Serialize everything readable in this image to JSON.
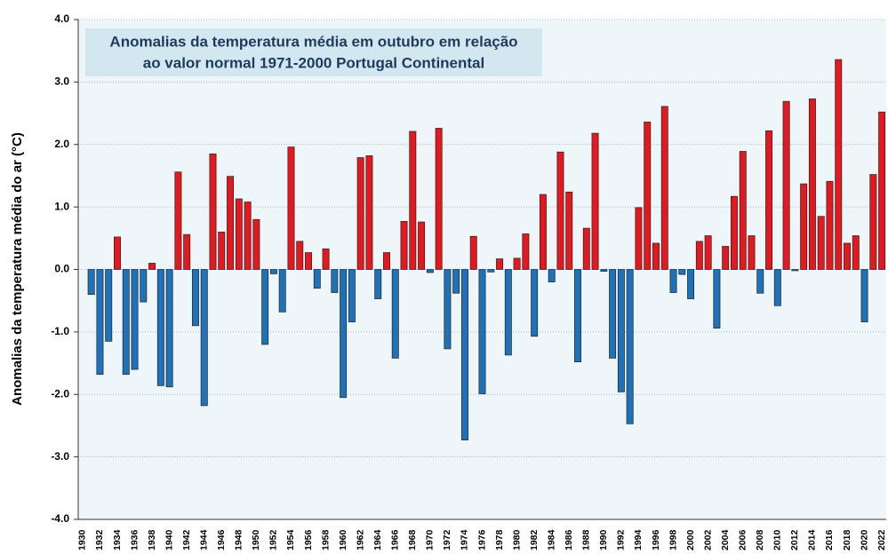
{
  "chart_data": {
    "type": "bar",
    "title": [
      "Anomalias da temperatura média em outubro em relação",
      "ao valor normal 1971-2000 Portugal Continental"
    ],
    "y_label": "Anomalias da temperatura média do ar (°C)",
    "categories": [
      "1930",
      null,
      "1932",
      null,
      "1934",
      null,
      "1936",
      null,
      "1938",
      null,
      "1940",
      null,
      "1942",
      null,
      "1944",
      null,
      "1946",
      null,
      "1948",
      null,
      "1950",
      null,
      "1952",
      null,
      "1954",
      null,
      "1956",
      null,
      "1958",
      null,
      "1960",
      null,
      "1962",
      null,
      "1964",
      null,
      "1966",
      null,
      "1968",
      null,
      "1970",
      null,
      "1972",
      null,
      "1974",
      null,
      "1976",
      null,
      "1978",
      null,
      "1980",
      null,
      "1982",
      null,
      "1984",
      null,
      "1986",
      null,
      "1988",
      null,
      "1990",
      null,
      "1992",
      null,
      "1994",
      null,
      "1996",
      null,
      "1998",
      null,
      "2000",
      null,
      "2002",
      null,
      "2004",
      null,
      "2006",
      null,
      "2008",
      null,
      "2010",
      null,
      "2012",
      null,
      "2014",
      null,
      "2016",
      null,
      "2018",
      null,
      "2020",
      null,
      "2022"
    ],
    "values": [
      null,
      -0.4,
      -1.68,
      -1.15,
      0.52,
      -1.68,
      -1.6,
      -0.52,
      0.1,
      -1.86,
      -1.88,
      1.56,
      0.56,
      -0.9,
      -2.18,
      1.85,
      0.6,
      1.49,
      1.13,
      1.08,
      0.8,
      -1.2,
      -0.07,
      -0.68,
      1.96,
      0.45,
      0.27,
      -0.3,
      0.33,
      -0.37,
      -2.05,
      -0.84,
      1.79,
      1.82,
      -0.47,
      0.27,
      -1.42,
      0.77,
      2.21,
      0.76,
      -0.05,
      2.26,
      -1.27,
      -0.38,
      -2.73,
      0.53,
      -1.99,
      -0.04,
      0.17,
      -1.37,
      0.18,
      0.57,
      -1.07,
      1.2,
      -0.2,
      1.88,
      1.24,
      -1.48,
      0.66,
      2.18,
      -0.03,
      -1.42,
      -1.96,
      -2.47,
      0.99,
      2.36,
      0.42,
      2.61,
      -0.37,
      -0.08,
      -0.47,
      0.45,
      0.54,
      -0.94,
      0.37,
      1.17,
      1.89,
      0.54,
      -0.38,
      2.22,
      -0.58,
      2.69,
      -0.02,
      1.37,
      2.73,
      0.85,
      1.41,
      3.36,
      0.42,
      0.54,
      -0.84,
      1.52,
      2.52
    ],
    "positive_color": "#e3191f",
    "negative_color": "#1f72b8",
    "ylim": [
      -4,
      4
    ],
    "yticks": [
      {
        "value": -4,
        "label": "-4.0"
      },
      {
        "value": -3,
        "label": "-3.0"
      },
      {
        "value": -2,
        "label": "-2.0"
      },
      {
        "value": -1,
        "label": "-1.0"
      },
      {
        "value": 0,
        "label": "0.0"
      },
      {
        "value": 1,
        "label": "1.0"
      },
      {
        "value": 2,
        "label": "2.0"
      },
      {
        "value": 3,
        "label": "3.0"
      },
      {
        "value": 4,
        "label": "4.0"
      }
    ],
    "grid": true
  }
}
